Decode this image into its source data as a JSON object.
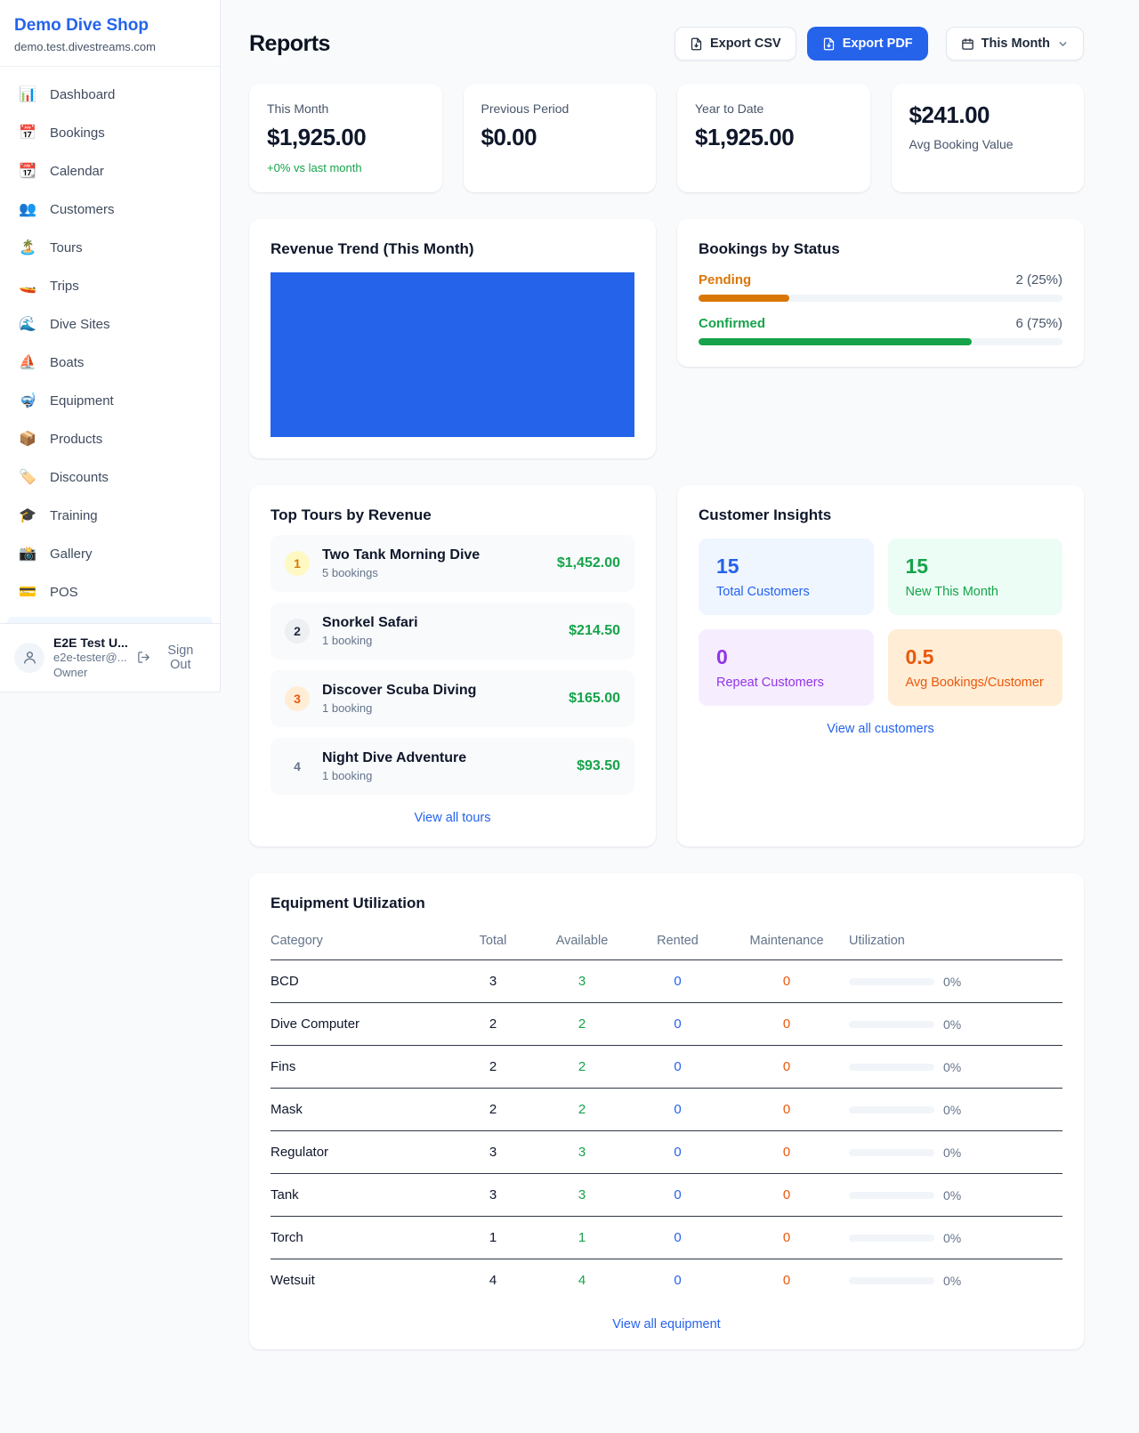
{
  "colors": {
    "accent": "#2563eb",
    "positive": "#16a34a",
    "warning": "#d97706",
    "danger_orange": "#ea580c",
    "purple": "#9333ea"
  },
  "sidebar": {
    "shop_name": "Demo Dive Shop",
    "shop_domain": "demo.test.divestreams.com",
    "items": [
      {
        "id": "dashboard",
        "icon": "bar-chart-icon",
        "emoji": "📊",
        "label": "Dashboard"
      },
      {
        "id": "bookings",
        "icon": "calendar-icon",
        "emoji": "📅",
        "label": "Bookings"
      },
      {
        "id": "calendar",
        "icon": "tearoff-calendar-icon",
        "emoji": "📆",
        "label": "Calendar"
      },
      {
        "id": "customers",
        "icon": "people-icon",
        "emoji": "👥",
        "label": "Customers"
      },
      {
        "id": "tours",
        "icon": "island-icon",
        "emoji": "🏝️",
        "label": "Tours"
      },
      {
        "id": "trips",
        "icon": "speedboat-icon",
        "emoji": "🚤",
        "label": "Trips"
      },
      {
        "id": "dive-sites",
        "icon": "wave-icon",
        "emoji": "🌊",
        "label": "Dive Sites"
      },
      {
        "id": "boats",
        "icon": "sailboat-icon",
        "emoji": "⛵",
        "label": "Boats"
      },
      {
        "id": "equipment",
        "icon": "diving-mask-icon",
        "emoji": "🤿",
        "label": "Equipment"
      },
      {
        "id": "products",
        "icon": "package-icon",
        "emoji": "📦",
        "label": "Products"
      },
      {
        "id": "discounts",
        "icon": "tag-icon",
        "emoji": "🏷️",
        "label": "Discounts"
      },
      {
        "id": "training",
        "icon": "graduation-cap-icon",
        "emoji": "🎓",
        "label": "Training"
      },
      {
        "id": "gallery",
        "icon": "camera-icon",
        "emoji": "📸",
        "label": "Gallery"
      },
      {
        "id": "pos",
        "icon": "credit-card-icon",
        "emoji": "💳",
        "label": "POS"
      }
    ],
    "user": {
      "name": "E2E Test U...",
      "email": "e2e-tester@...",
      "role": "Owner",
      "sign_out_label": "Sign Out"
    }
  },
  "header": {
    "title": "Reports",
    "export_csv_label": "Export CSV",
    "export_pdf_label": "Export PDF",
    "period_label": "This Month"
  },
  "stats": [
    {
      "label": "This Month",
      "value": "$1,925.00",
      "delta": "+0% vs last month"
    },
    {
      "label": "Previous Period",
      "value": "$0.00"
    },
    {
      "label": "Year to Date",
      "value": "$1,925.00"
    },
    {
      "label": "Avg Booking Value",
      "value": "$241.00"
    }
  ],
  "revenue_trend": {
    "title": "Revenue Trend (This Month)",
    "bar_color": "#2563eb",
    "fill_percent": 100
  },
  "bookings_by_status": {
    "title": "Bookings by Status",
    "rows": [
      {
        "label": "Pending",
        "count_text": "2 (25%)",
        "percent": 25,
        "color": "#d97706"
      },
      {
        "label": "Confirmed",
        "count_text": "6 (75%)",
        "percent": 75,
        "color": "#16a34a"
      }
    ]
  },
  "top_tours": {
    "title": "Top Tours by Revenue",
    "view_all_label": "View all tours",
    "rows": [
      {
        "rank": 1,
        "name": "Two Tank Morning Dive",
        "bookings": "5 bookings",
        "revenue": "$1,452.00"
      },
      {
        "rank": 2,
        "name": "Snorkel Safari",
        "bookings": "1 booking",
        "revenue": "$214.50"
      },
      {
        "rank": 3,
        "name": "Discover Scuba Diving",
        "bookings": "1 booking",
        "revenue": "$165.00"
      },
      {
        "rank": 4,
        "name": "Night Dive Adventure",
        "bookings": "1 booking",
        "revenue": "$93.50"
      }
    ]
  },
  "customer_insights": {
    "title": "Customer Insights",
    "view_all_label": "View all customers",
    "tiles": [
      {
        "value": "15",
        "label": "Total Customers",
        "color": "#2563eb",
        "bg": "#eff6ff"
      },
      {
        "value": "15",
        "label": "New This Month",
        "color": "#16a34a",
        "bg": "#ecfdf5"
      },
      {
        "value": "0",
        "label": "Repeat Customers",
        "color": "#9333ea",
        "bg": "#f6eefe"
      },
      {
        "value": "0.5",
        "label": "Avg Bookings/Customer",
        "color": "#ea580c",
        "bg": "#ffedd5"
      }
    ]
  },
  "equipment": {
    "title": "Equipment Utilization",
    "view_all_label": "View all equipment",
    "columns": [
      "Category",
      "Total",
      "Available",
      "Rented",
      "Maintenance",
      "Utilization"
    ],
    "rows": [
      {
        "category": "BCD",
        "total": 3,
        "available": 3,
        "rented": 0,
        "maintenance": 0,
        "utilization": "0%",
        "percent": 0
      },
      {
        "category": "Dive Computer",
        "total": 2,
        "available": 2,
        "rented": 0,
        "maintenance": 0,
        "utilization": "0%",
        "percent": 0
      },
      {
        "category": "Fins",
        "total": 2,
        "available": 2,
        "rented": 0,
        "maintenance": 0,
        "utilization": "0%",
        "percent": 0
      },
      {
        "category": "Mask",
        "total": 2,
        "available": 2,
        "rented": 0,
        "maintenance": 0,
        "utilization": "0%",
        "percent": 0
      },
      {
        "category": "Regulator",
        "total": 3,
        "available": 3,
        "rented": 0,
        "maintenance": 0,
        "utilization": "0%",
        "percent": 0
      },
      {
        "category": "Tank",
        "total": 3,
        "available": 3,
        "rented": 0,
        "maintenance": 0,
        "utilization": "0%",
        "percent": 0
      },
      {
        "category": "Torch",
        "total": 1,
        "available": 1,
        "rented": 0,
        "maintenance": 0,
        "utilization": "0%",
        "percent": 0
      },
      {
        "category": "Wetsuit",
        "total": 4,
        "available": 4,
        "rented": 0,
        "maintenance": 0,
        "utilization": "0%",
        "percent": 0
      }
    ]
  }
}
